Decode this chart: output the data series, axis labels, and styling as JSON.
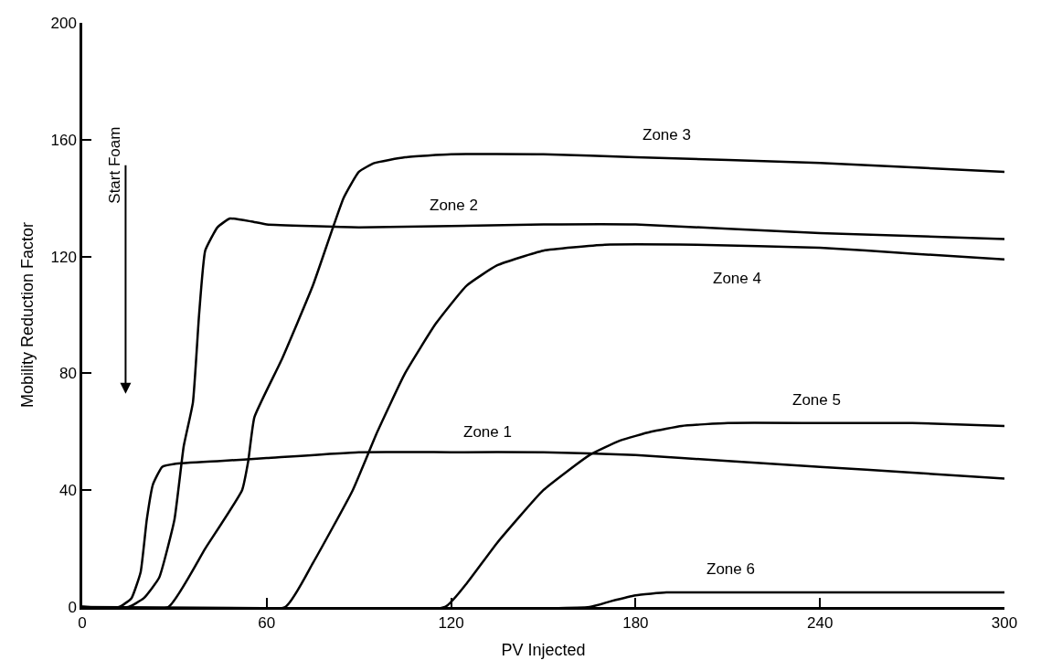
{
  "chart_data": {
    "type": "line",
    "xlabel": "PV Injected",
    "ylabel": "Mobility Reduction Factor",
    "xlim": [
      0,
      300
    ],
    "ylim": [
      0,
      200
    ],
    "xticks": [
      0,
      60,
      120,
      180,
      240,
      300
    ],
    "yticks": [
      0,
      40,
      80,
      120,
      160,
      200
    ],
    "legend": false,
    "marker": "none",
    "line_style": "solid",
    "annotations": [
      "Start Foam"
    ],
    "series": [
      {
        "name": "Zone 1",
        "color": "#000000",
        "x": [
          0,
          12,
          16,
          19,
          21,
          23,
          26,
          30,
          45,
          60,
          90,
          120,
          150,
          180,
          210,
          240,
          270,
          300
        ],
        "values": [
          0,
          0,
          3,
          12,
          30,
          42,
          48,
          49,
          50,
          51,
          53,
          53,
          53,
          52,
          50,
          48,
          46,
          44
        ]
      },
      {
        "name": "Zone 2",
        "color": "#000000",
        "x": [
          0,
          15,
          20,
          25,
          30,
          33,
          36,
          38,
          40,
          44,
          48,
          55,
          60,
          90,
          150,
          180,
          240,
          300
        ],
        "values": [
          0,
          0,
          3,
          10,
          30,
          55,
          70,
          100,
          122,
          130,
          133,
          132,
          131,
          130,
          131,
          131,
          128,
          126
        ]
      },
      {
        "name": "Zone 3",
        "color": "#000000",
        "x": [
          0,
          28,
          40,
          52,
          54,
          56,
          65,
          75,
          85,
          90,
          95,
          105,
          120,
          150,
          180,
          240,
          300
        ],
        "values": [
          0,
          0,
          20,
          40,
          50,
          65,
          85,
          110,
          140,
          149,
          152,
          154,
          155,
          155,
          154,
          152,
          149
        ]
      },
      {
        "name": "Zone 4",
        "color": "#000000",
        "x": [
          0,
          66,
          75,
          88,
          96,
          105,
          115,
          125,
          135,
          150,
          170,
          200,
          240,
          270,
          300
        ],
        "values": [
          0,
          0,
          15,
          40,
          60,
          80,
          97,
          110,
          117,
          122,
          124,
          124,
          123,
          121,
          119
        ]
      },
      {
        "name": "Zone 5",
        "color": "#000000",
        "x": [
          0,
          118,
          125,
          135,
          150,
          165,
          175,
          185,
          195,
          210,
          240,
          270,
          300
        ],
        "values": [
          0,
          0,
          8,
          22,
          40,
          52,
          57,
          60,
          62,
          63,
          63,
          63,
          62
        ]
      },
      {
        "name": "Zone 6",
        "color": "#000000",
        "x": [
          0,
          165,
          172,
          180,
          190,
          200,
          240,
          300
        ],
        "values": [
          0,
          0,
          2,
          4,
          5,
          5,
          5,
          5
        ]
      }
    ]
  }
}
